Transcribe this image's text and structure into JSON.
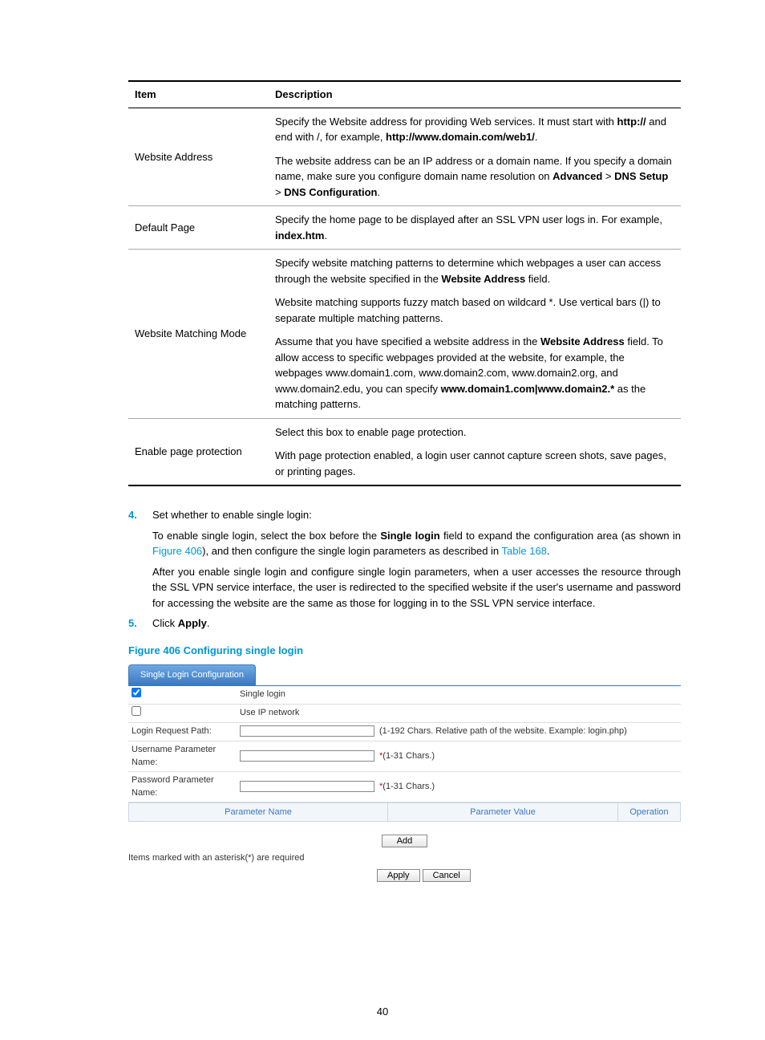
{
  "table": {
    "headers": [
      "Item",
      "Description"
    ],
    "rows": [
      {
        "item": "Website Address",
        "desc_parts": [
          {
            "pre": "Specify the Website address for providing Web services. It must start with ",
            "b1": "http://",
            "mid": " and end with /, for example, ",
            "b2": "http://www.domain.com/web1/",
            "post": "."
          },
          {
            "pre": "The website address can be an IP address or a domain name. If you specify a domain name, make sure you configure domain name resolution on ",
            "b1": "Advanced",
            "mid": " > ",
            "b2": "DNS Setup",
            "mid2": " > ",
            "b3": "DNS Configuration",
            "post": "."
          }
        ]
      },
      {
        "item": "Default Page",
        "desc_parts": [
          {
            "pre": "Specify the home page to be displayed after an SSL VPN user logs in. For example, ",
            "b1": "index.htm",
            "post": "."
          }
        ]
      },
      {
        "item": "Website Matching Mode",
        "desc_parts": [
          {
            "pre": "Specify website matching patterns to determine which webpages a user can access through the website specified in the ",
            "b1": "Website Address",
            "post": " field."
          },
          {
            "pre": "Website matching supports fuzzy match based on wildcard *. Use vertical bars (|) to separate multiple matching patterns."
          },
          {
            "pre": "Assume that you have specified a website address in the ",
            "b1": "Website Address",
            "mid": " field. To allow access to specific webpages provided at the website, for example, the webpages www.domain1.com, www.domain2.com, www.domain2.org, and www.domain2.edu, you can specify ",
            "b2": "www.domain1.com|www.domain2.*",
            "post": " as the matching patterns."
          }
        ]
      },
      {
        "item": "Enable page protection",
        "desc_parts": [
          {
            "pre": "Select this box to enable page protection."
          },
          {
            "pre": "With page protection enabled, a login user cannot capture screen shots, save pages, or printing pages."
          }
        ]
      }
    ]
  },
  "steps": {
    "s4": {
      "num": "4.",
      "text": "Set whether to enable single login:"
    },
    "s4_p1_pre": "To enable single login, select the box before the ",
    "s4_p1_b": "Single login",
    "s4_p1_mid": " field to expand the configuration area (as shown in ",
    "s4_p1_link1": "Figure 406",
    "s4_p1_mid2": "), and then configure the single login parameters as described in ",
    "s4_p1_link2": "Table 168",
    "s4_p1_post": ".",
    "s4_p2": "After you enable single login and configure single login parameters, when a user accesses the resource through the SSL VPN service interface, the user is redirected to the specified website if the user's username and password for accessing the website are the same as those for logging in to the SSL VPN service interface.",
    "s5": {
      "num": "5.",
      "pre": "Click ",
      "b": "Apply",
      "post": "."
    }
  },
  "figure": {
    "caption": "Figure 406 Configuring single login",
    "tab_label": "Single Login Configuration",
    "single_login_label": "Single login",
    "use_ip_label": "Use IP network",
    "login_path_label": "Login Request Path:",
    "login_path_hint": "(1-192 Chars. Relative path of the website. Example: login.php)",
    "user_param_label": "Username Parameter Name:",
    "user_param_hint": "(1-31 Chars.)",
    "pass_param_label": "Password Parameter Name:",
    "pass_param_hint": "(1-31 Chars.)",
    "grid_headers": [
      "Parameter Name",
      "Parameter Value",
      "Operation"
    ],
    "add_btn": "Add",
    "note": "Items marked with an asterisk(*) are required",
    "apply_btn": "Apply",
    "cancel_btn": "Cancel"
  },
  "page_number": "40"
}
